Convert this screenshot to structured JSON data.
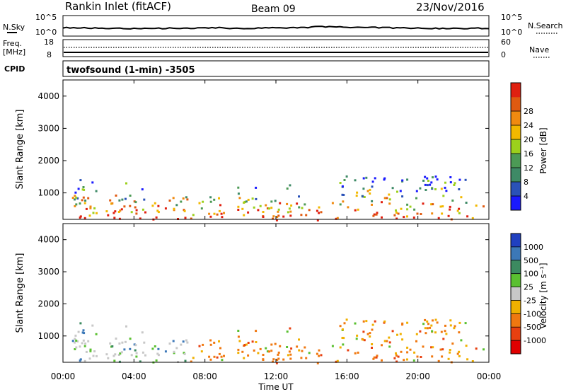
{
  "header": {
    "station": "Rankin Inlet (fitACF)",
    "beam": "Beam 09",
    "date": "23/Nov/2016"
  },
  "noise_panel": {
    "left_label": "N.Sky",
    "right_label": "N.Search",
    "left_ticks": [
      "10^5",
      "10^0"
    ],
    "right_ticks": [
      "10^5",
      "10^0"
    ]
  },
  "freq_panel": {
    "left_label_1": "Freq.",
    "left_label_2": "[MHz]",
    "right_label": "Nave",
    "left_ticks": [
      "18",
      "8"
    ],
    "right_ticks": [
      "60",
      "0"
    ]
  },
  "cpid_panel": {
    "label": "CPID",
    "program": "twofsound (1-min) -3505"
  },
  "chart_data": [
    {
      "type": "heatmap",
      "name": "power",
      "ylabel": "Slant Range [km]",
      "ylim": [
        180,
        4500
      ],
      "yticks": [
        "1000",
        "2000",
        "3000",
        "4000"
      ],
      "ytick_values": [
        1000,
        2000,
        3000,
        4000
      ],
      "colorbar_label": "Power [dB]",
      "colorbar_ticks": [
        "4",
        "8",
        "12",
        "16",
        "20",
        "24",
        "28"
      ],
      "colorbar_colors": [
        "#1a1aff",
        "#2a52b8",
        "#3e8a66",
        "#4c9a55",
        "#9cd01c",
        "#f2b800",
        "#f08a10",
        "#e05a10",
        "#e02010"
      ]
    },
    {
      "type": "heatmap",
      "name": "velocity",
      "ylabel": "Slant Range [km]",
      "ylim": [
        180,
        4500
      ],
      "yticks": [
        "1000",
        "2000",
        "3000",
        "4000"
      ],
      "ytick_values": [
        1000,
        2000,
        3000,
        4000
      ],
      "colorbar_label": "Velocity [m s⁻¹]",
      "colorbar_ticks": [
        "1000",
        "500",
        "100",
        "25",
        "-25",
        "-100",
        "-500",
        "-1000"
      ],
      "colorbar_colors": [
        "#2040c0",
        "#3c78b8",
        "#3c8a60",
        "#5ac030",
        "#c8c8c8",
        "#f0b000",
        "#f07810",
        "#e84010",
        "#e00000"
      ]
    }
  ],
  "x_axis": {
    "label": "Time UT",
    "ticks": [
      "00:00",
      "04:00",
      "08:00",
      "12:00",
      "16:00",
      "20:00",
      "00:00"
    ],
    "tick_hours": [
      0,
      4,
      8,
      12,
      16,
      20,
      24
    ]
  }
}
